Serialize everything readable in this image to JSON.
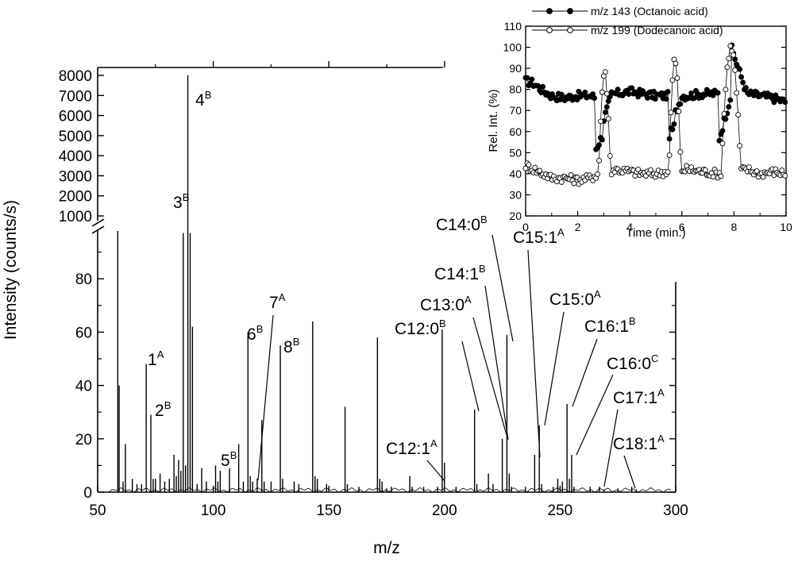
{
  "chart_data": [
    {
      "type": "line",
      "subtype": "mass-spectrum-stick",
      "title": "",
      "xlabel": "m/z",
      "ylabel": "Intensity (counts/s)",
      "xlim": [
        50,
        300
      ],
      "ylim_lower": [
        0,
        100
      ],
      "ylim_upper": [
        0,
        8000
      ],
      "axis_break": true,
      "x_ticks": [
        "50",
        "100",
        "150",
        "200",
        "250",
        "300"
      ],
      "y_ticks_lower": [
        "0",
        "20",
        "40",
        "60",
        "80"
      ],
      "y_ticks_upper": [
        "1000",
        "2000",
        "3000",
        "4000",
        "5000",
        "6000",
        "7000",
        "8000"
      ],
      "peaks": [
        {
          "mz": 58.7,
          "intensity": 250
        },
        {
          "mz": 59.3,
          "intensity": 40
        },
        {
          "mz": 61,
          "intensity": 4
        },
        {
          "mz": 62,
          "intensity": 18
        },
        {
          "mz": 65,
          "intensity": 5
        },
        {
          "mz": 67,
          "intensity": 3
        },
        {
          "mz": 69,
          "intensity": 3
        },
        {
          "mz": 71,
          "intensity": 48
        },
        {
          "mz": 73,
          "intensity": 29
        },
        {
          "mz": 74,
          "intensity": 5
        },
        {
          "mz": 75,
          "intensity": 5
        },
        {
          "mz": 77,
          "intensity": 7
        },
        {
          "mz": 79,
          "intensity": 4
        },
        {
          "mz": 81,
          "intensity": 5
        },
        {
          "mz": 83,
          "intensity": 14
        },
        {
          "mz": 84,
          "intensity": 6
        },
        {
          "mz": 85,
          "intensity": 12
        },
        {
          "mz": 86,
          "intensity": 8
        },
        {
          "mz": 87,
          "intensity": 150
        },
        {
          "mz": 88,
          "intensity": 10
        },
        {
          "mz": 89,
          "intensity": 8000
        },
        {
          "mz": 90,
          "intensity": 150
        },
        {
          "mz": 91,
          "intensity": 62
        },
        {
          "mz": 93,
          "intensity": 3
        },
        {
          "mz": 95,
          "intensity": 9
        },
        {
          "mz": 97,
          "intensity": 4
        },
        {
          "mz": 101,
          "intensity": 10
        },
        {
          "mz": 102,
          "intensity": 4
        },
        {
          "mz": 103,
          "intensity": 8
        },
        {
          "mz": 107,
          "intensity": 9
        },
        {
          "mz": 111,
          "intensity": 18
        },
        {
          "mz": 113,
          "intensity": 4
        },
        {
          "mz": 115,
          "intensity": 60
        },
        {
          "mz": 116,
          "intensity": 6
        },
        {
          "mz": 117,
          "intensity": 4
        },
        {
          "mz": 119,
          "intensity": 5
        },
        {
          "mz": 121,
          "intensity": 27
        },
        {
          "mz": 122,
          "intensity": 4
        },
        {
          "mz": 125,
          "intensity": 4
        },
        {
          "mz": 129,
          "intensity": 55
        },
        {
          "mz": 130,
          "intensity": 5
        },
        {
          "mz": 135,
          "intensity": 4
        },
        {
          "mz": 137,
          "intensity": 3
        },
        {
          "mz": 143,
          "intensity": 64
        },
        {
          "mz": 144,
          "intensity": 6
        },
        {
          "mz": 145,
          "intensity": 5
        },
        {
          "mz": 149,
          "intensity": 3
        },
        {
          "mz": 157,
          "intensity": 32
        },
        {
          "mz": 158,
          "intensity": 3
        },
        {
          "mz": 163,
          "intensity": 2
        },
        {
          "mz": 171,
          "intensity": 58
        },
        {
          "mz": 172,
          "intensity": 5
        },
        {
          "mz": 173,
          "intensity": 4
        },
        {
          "mz": 177,
          "intensity": 2
        },
        {
          "mz": 185,
          "intensity": 6
        },
        {
          "mz": 186,
          "intensity": 2
        },
        {
          "mz": 191,
          "intensity": 2
        },
        {
          "mz": 197,
          "intensity": 2
        },
        {
          "mz": 199,
          "intensity": 61
        },
        {
          "mz": 200,
          "intensity": 11
        },
        {
          "mz": 205,
          "intensity": 2
        },
        {
          "mz": 213,
          "intensity": 31
        },
        {
          "mz": 214,
          "intensity": 3
        },
        {
          "mz": 219,
          "intensity": 7
        },
        {
          "mz": 221,
          "intensity": 3
        },
        {
          "mz": 225,
          "intensity": 20
        },
        {
          "mz": 227,
          "intensity": 59
        },
        {
          "mz": 228,
          "intensity": 7
        },
        {
          "mz": 229,
          "intensity": 2
        },
        {
          "mz": 235,
          "intensity": 2
        },
        {
          "mz": 239,
          "intensity": 14
        },
        {
          "mz": 241,
          "intensity": 25
        },
        {
          "mz": 242,
          "intensity": 3
        },
        {
          "mz": 247,
          "intensity": 2
        },
        {
          "mz": 249,
          "intensity": 5
        },
        {
          "mz": 251,
          "intensity": 4
        },
        {
          "mz": 253,
          "intensity": 33
        },
        {
          "mz": 254,
          "intensity": 5
        },
        {
          "mz": 255,
          "intensity": 14
        },
        {
          "mz": 256,
          "intensity": 2
        },
        {
          "mz": 263,
          "intensity": 2
        },
        {
          "mz": 267,
          "intensity": 2
        },
        {
          "mz": 269,
          "intensity": 1
        },
        {
          "mz": 281,
          "intensity": 2
        },
        {
          "mz": 283,
          "intensity": 1
        }
      ],
      "annotations": [
        {
          "base": "1",
          "sup": "A",
          "mz": 71,
          "intensity": 48
        },
        {
          "base": "2",
          "sup": "B",
          "mz": 73,
          "intensity": 29
        },
        {
          "base": "3",
          "sup": "B",
          "mz": 87,
          "intensity": 150
        },
        {
          "base": "4",
          "sup": "B",
          "mz": 89,
          "intensity": 8000
        },
        {
          "base": "5",
          "sup": "B",
          "mz": 102,
          "intensity": 4
        },
        {
          "base": "6",
          "sup": "B",
          "mz": 115,
          "intensity": 60
        },
        {
          "base": "7",
          "sup": "A",
          "mz": 116,
          "intensity": 6
        },
        {
          "base": "8",
          "sup": "B",
          "mz": 129,
          "intensity": 55
        },
        {
          "base": "C12:1",
          "sup": "A",
          "mz": 197,
          "intensity": 2
        },
        {
          "base": "C12:0",
          "sup": "B",
          "mz": 213,
          "intensity": 31
        },
        {
          "base": "C13:0",
          "sup": "A",
          "mz": 225,
          "intensity": 20
        },
        {
          "base": "C14:1",
          "sup": "B",
          "mz": 226,
          "intensity": 20
        },
        {
          "base": "C14:0",
          "sup": "B",
          "mz": 227,
          "intensity": 59
        },
        {
          "base": "C15:1",
          "sup": "A",
          "mz": 239,
          "intensity": 14
        },
        {
          "base": "C15:0",
          "sup": "A",
          "mz": 241,
          "intensity": 25
        },
        {
          "base": "C16:1",
          "sup": "B",
          "mz": 253,
          "intensity": 33
        },
        {
          "base": "C16:0",
          "sup": "C",
          "mz": 255,
          "intensity": 14
        },
        {
          "base": "C17:1",
          "sup": "A",
          "mz": 267,
          "intensity": 2
        },
        {
          "base": "C18:1",
          "sup": "A",
          "mz": 281,
          "intensity": 2
        }
      ]
    },
    {
      "type": "scatter",
      "subtype": "inset-time-trace",
      "title": "",
      "xlabel": "Time (min.)",
      "ylabel": "Rel. Int. (%)",
      "xlim": [
        0,
        10
      ],
      "ylim": [
        20,
        110
      ],
      "x_ticks": [
        "0",
        "2",
        "4",
        "6",
        "8",
        "10"
      ],
      "y_ticks": [
        "20",
        "30",
        "40",
        "50",
        "60",
        "70",
        "80",
        "90",
        "100",
        "110"
      ],
      "legend_position": "top",
      "series": [
        {
          "name": "m/z 143  (Octanoic acid)",
          "marker": "filled-circle",
          "baseline": [
            [
              0.0,
              84
            ],
            [
              0.3,
              83
            ],
            [
              0.6,
              80
            ],
            [
              1.0,
              77
            ],
            [
              1.5,
              76
            ],
            [
              2.0,
              77
            ],
            [
              2.5,
              77
            ],
            [
              2.7,
              76
            ],
            [
              3.5,
              78
            ],
            [
              4.0,
              79
            ],
            [
              4.5,
              78
            ],
            [
              5.0,
              77
            ],
            [
              5.5,
              77
            ],
            [
              6.2,
              77
            ],
            [
              6.8,
              78
            ],
            [
              7.3,
              78
            ],
            [
              8.5,
              78
            ],
            [
              9.0,
              77
            ],
            [
              9.5,
              76
            ],
            [
              10.0,
              74
            ]
          ],
          "events": [
            {
              "start": 2.7,
              "dip": 52,
              "peak": 65,
              "end": 3.3
            },
            {
              "start": 5.5,
              "dip": 58,
              "peak": 68,
              "end": 6.0
            },
            {
              "start": 7.4,
              "dip": 55,
              "peak": 100,
              "end": 8.5
            }
          ]
        },
        {
          "name": "m/z 199  (Dodecanoic acid)",
          "marker": "open-circle",
          "baseline": [
            [
              0.0,
              44
            ],
            [
              0.5,
              41
            ],
            [
              1.0,
              38
            ],
            [
              1.5,
              38
            ],
            [
              2.0,
              37
            ],
            [
              2.5,
              38
            ],
            [
              2.8,
              40
            ],
            [
              3.5,
              42
            ],
            [
              4.0,
              41
            ],
            [
              4.5,
              40
            ],
            [
              5.0,
              40
            ],
            [
              5.4,
              41
            ],
            [
              6.2,
              42
            ],
            [
              6.8,
              41
            ],
            [
              7.4,
              40
            ],
            [
              8.5,
              42
            ],
            [
              9.0,
              40
            ],
            [
              9.5,
              41
            ],
            [
              10.0,
              40
            ]
          ],
          "events": [
            {
              "start": 2.8,
              "peak": 88,
              "end": 3.4
            },
            {
              "start": 5.5,
              "peak": 94,
              "end": 6.1
            },
            {
              "start": 7.5,
              "peak": 100,
              "end": 8.5
            }
          ]
        }
      ]
    }
  ]
}
